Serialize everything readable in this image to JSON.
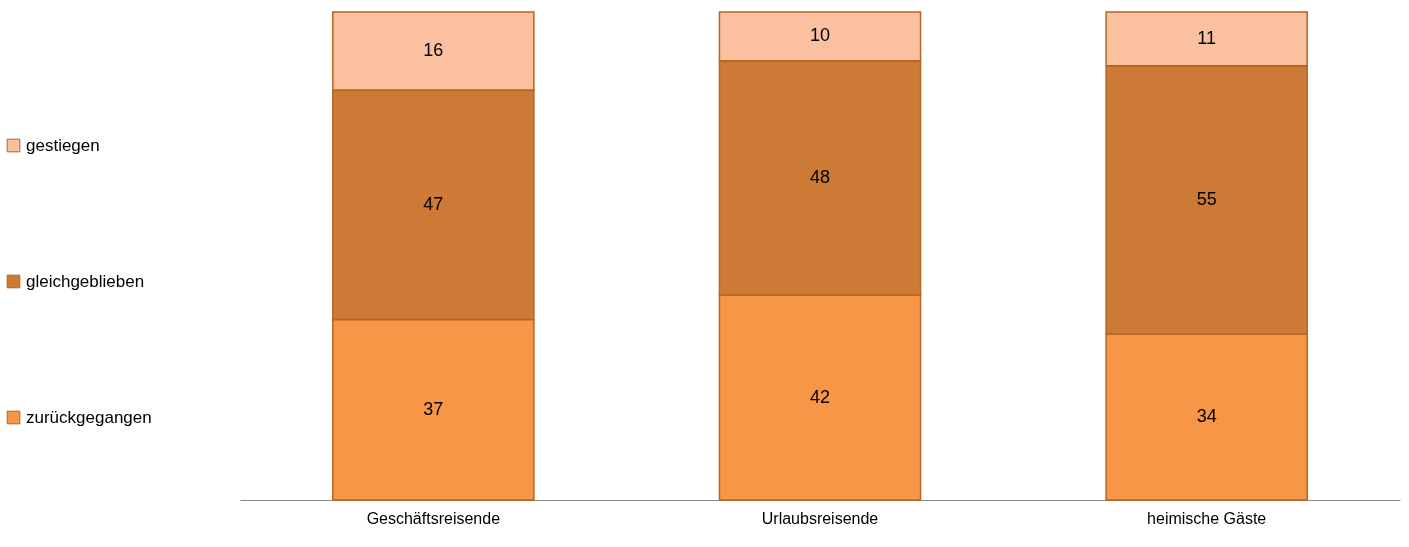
{
  "chart_data": {
    "type": "bar",
    "stacked": true,
    "data_labels": true,
    "legend": "left",
    "categories": [
      "Geschäftsreisende",
      "Urlaubsreisende",
      "heimische Gäste"
    ],
    "series": [
      {
        "name": "zurückgegangen",
        "color": "#f79646",
        "values": [
          37,
          42,
          34
        ]
      },
      {
        "name": "gleichgeblieben",
        "color": "#cc7a36",
        "values": [
          47,
          48,
          55
        ]
      },
      {
        "name": "gestiegen",
        "color": "#fac09f",
        "values": [
          16,
          10,
          11
        ]
      }
    ]
  }
}
